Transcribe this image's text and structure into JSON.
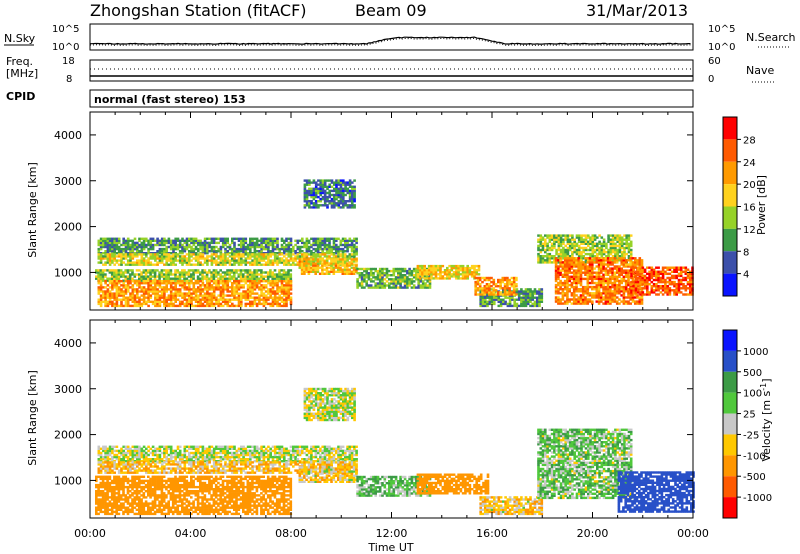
{
  "header": {
    "station": "Zhongshan Station (fitACF)",
    "beam": "Beam 09",
    "date": "31/Mar/2013"
  },
  "noise_panel": {
    "left_label": "N.Sky",
    "left_ticks": [
      "10^5",
      "10^0"
    ],
    "right_label": "N.Search",
    "right_ticks": [
      "10^5",
      "10^0"
    ]
  },
  "freq_panel": {
    "left_label_line1": "Freq.",
    "left_label_line2": "[MHz]",
    "left_ticks": [
      "18",
      "8"
    ],
    "right_label": "Nave",
    "right_ticks": [
      "60",
      "0"
    ]
  },
  "cpid_panel": {
    "label": "CPID",
    "value": "normal (fast stereo) 153"
  },
  "axes": {
    "ylabel": "Slant Range [km]",
    "yticks": [
      "4000",
      "3000",
      "2000",
      "1000"
    ],
    "xlabel": "Time UT",
    "xticks": [
      "00:00",
      "04:00",
      "08:00",
      "12:00",
      "16:00",
      "20:00",
      "00:00"
    ]
  },
  "power_scale": {
    "label": "Power [dB]",
    "ticks": [
      "28",
      "24",
      "20",
      "16",
      "12",
      "8",
      "4"
    ],
    "colors": [
      "#ff0000",
      "#ff5a00",
      "#ff9a00",
      "#ffd21e",
      "#96d228",
      "#3c9b46",
      "#3c50aa",
      "#0a14ff"
    ]
  },
  "velocity_scale": {
    "label": "Velocity [m s^-1]",
    "ticks": [
      "1000",
      "500",
      "100",
      "25",
      "-25",
      "-100",
      "-500",
      "-1000"
    ],
    "colors": [
      "#0a14ff",
      "#2850c8",
      "#3c9b46",
      "#50c83c",
      "#c8c8c8",
      "#ffc800",
      "#ff9600",
      "#ff5a00",
      "#ff0000"
    ]
  },
  "chart_data": {
    "type": "heatmap",
    "xlim_hours": [
      0,
      24
    ],
    "ylim_km": [
      180,
      4500
    ],
    "power_clusters": [
      {
        "t0": 0.3,
        "t1": 10.6,
        "r0": 1400,
        "r1": 1750,
        "dB": 10
      },
      {
        "t0": 0.3,
        "t1": 10.6,
        "r0": 1150,
        "r1": 1400,
        "dB": 16
      },
      {
        "t0": 0.2,
        "t1": 8.0,
        "r0": 800,
        "r1": 1050,
        "dB": 14
      },
      {
        "t0": 0.3,
        "t1": 8.0,
        "r0": 250,
        "r1": 800,
        "dB": 22
      },
      {
        "t0": 8.5,
        "t1": 10.5,
        "r0": 2400,
        "r1": 3000,
        "dB": 8
      },
      {
        "t0": 8.3,
        "t1": 10.6,
        "r0": 950,
        "r1": 1300,
        "dB": 20
      },
      {
        "t0": 10.6,
        "t1": 13.5,
        "r0": 650,
        "r1": 1100,
        "dB": 12
      },
      {
        "t0": 13.0,
        "t1": 15.5,
        "r0": 850,
        "r1": 1150,
        "dB": 18
      },
      {
        "t0": 15.5,
        "t1": 18.0,
        "r0": 250,
        "r1": 650,
        "dB": 10
      },
      {
        "t0": 15.3,
        "t1": 17.0,
        "r0": 500,
        "r1": 900,
        "dB": 22
      },
      {
        "t0": 17.8,
        "t1": 21.5,
        "r0": 1200,
        "r1": 1800,
        "dB": 14
      },
      {
        "t0": 18.5,
        "t1": 22.0,
        "r0": 300,
        "r1": 1300,
        "dB": 24
      },
      {
        "t0": 21.5,
        "t1": 24.0,
        "r0": 500,
        "r1": 1100,
        "dB": 26
      }
    ],
    "velocity_clusters": [
      {
        "t0": 0.3,
        "t1": 10.6,
        "r0": 1400,
        "r1": 1750,
        "v": 0
      },
      {
        "t0": 0.3,
        "t1": 10.6,
        "r0": 1150,
        "r1": 1400,
        "v": -80
      },
      {
        "t0": 0.2,
        "t1": 8.0,
        "r0": 250,
        "r1": 1100,
        "v": -300
      },
      {
        "t0": 8.5,
        "t1": 10.5,
        "r0": 2300,
        "r1": 3000,
        "v": 0
      },
      {
        "t0": 8.3,
        "t1": 10.6,
        "r0": 950,
        "r1": 1300,
        "v": -60
      },
      {
        "t0": 10.6,
        "t1": 13.5,
        "r0": 650,
        "r1": 1100,
        "v": 80
      },
      {
        "t0": 13.0,
        "t1": 15.8,
        "r0": 700,
        "r1": 1150,
        "v": -400
      },
      {
        "t0": 15.5,
        "t1": 18.0,
        "r0": 250,
        "r1": 650,
        "v": -70
      },
      {
        "t0": 17.8,
        "t1": 21.5,
        "r0": 600,
        "r1": 2100,
        "v": 60
      },
      {
        "t0": 21.0,
        "t1": 24.0,
        "r0": 300,
        "r1": 1200,
        "v": 600
      }
    ],
    "sky_noise_log10": {
      "t0": 0.0,
      "t1": 24.0,
      "base": 1.2,
      "bump_t0": 11.0,
      "bump_t1": 16.5,
      "bump_peak": 2.4
    },
    "frequency_MHz": 10,
    "nave": 25
  }
}
